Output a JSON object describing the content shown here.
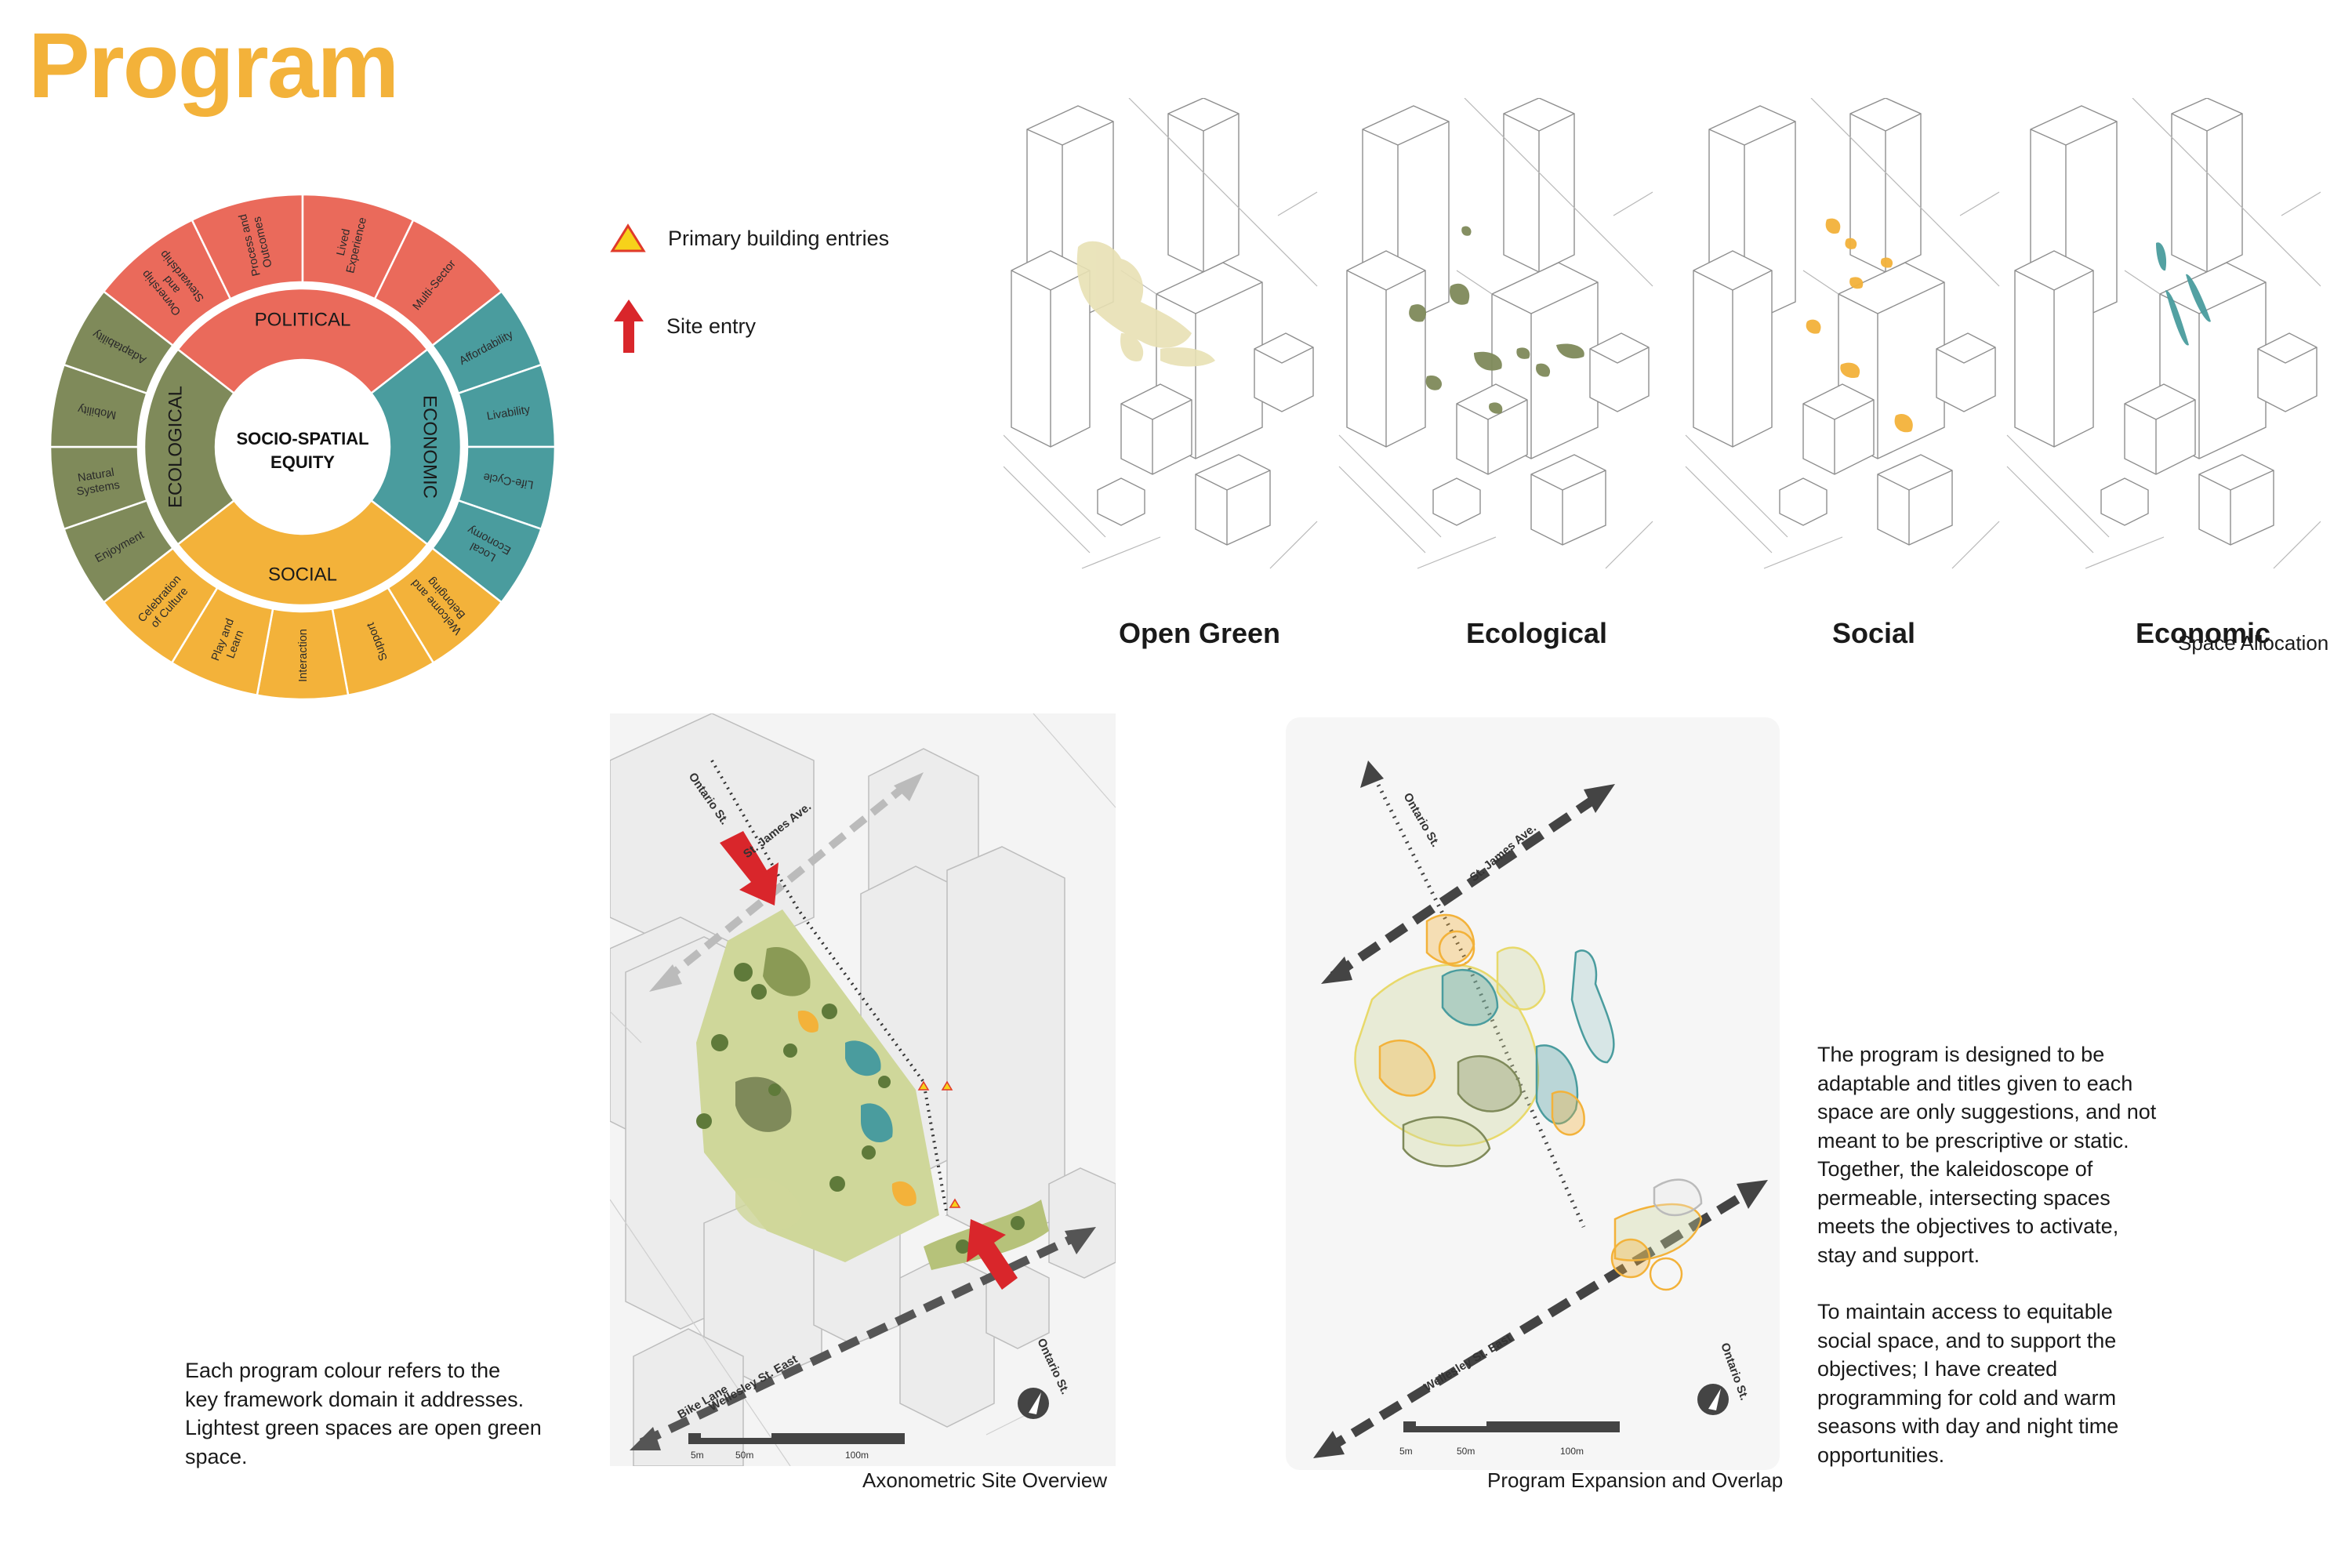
{
  "title": "Program",
  "wheel": {
    "center": [
      "SOCIO-SPATIAL",
      "EQUITY"
    ],
    "domains": {
      "political": "POLITICAL",
      "economic": "ECONOMIC",
      "social": "SOCIAL",
      "ecological": "ECOLOGICAL"
    },
    "segments": {
      "political": [
        "Ownership and Stewardship",
        "Process and Outcomes",
        "Lived Experience",
        "Multi-Sector"
      ],
      "economic": [
        "Affordability",
        "Livability",
        "Life-Cycle",
        "Local Economy"
      ],
      "social": [
        "Welcome and Belonging",
        "Support",
        "Interaction",
        "Play and Learn",
        "Celebration of Culture"
      ],
      "ecological": [
        "Enjoyment",
        "Natural Systems",
        "Mobility",
        "Adaptability"
      ]
    },
    "colors": {
      "political": "#ea6a5b",
      "economic": "#4a9c9e",
      "social": "#f3b23a",
      "ecological": "#7f8a5a"
    }
  },
  "legend": {
    "entries_label": "Primary building entries",
    "site_entry_label": "Site entry"
  },
  "panels": [
    {
      "label": "Open Green",
      "color": "#e8e1b4"
    },
    {
      "label": "Ecological",
      "color": "#7f8a5a"
    },
    {
      "label": "Social",
      "color": "#f3b23a"
    },
    {
      "label": "Economic",
      "color": "#4a9c9e"
    }
  ],
  "space_allocation_caption": "Space Allocation",
  "axo": {
    "caption": "Axonometric Site Overview",
    "streets": {
      "ontario": "Ontario St.",
      "st_james": "St. James Ave.",
      "wellesley": "Wellesley St. East",
      "bike_lane": "Bike Lane",
      "ontario_south": "Ontario St."
    },
    "scale": [
      "5m",
      "50m",
      "100m"
    ]
  },
  "overlap": {
    "caption": "Program Expansion and Overlap",
    "streets": {
      "ontario": "Ontario St.",
      "st_james": "St. James Ave.",
      "wellesley": "Wellesley St. East",
      "ontario_south": "Ontario St."
    },
    "scale": [
      "5m",
      "50m",
      "100m"
    ]
  },
  "left_paragraph": [
    "Each program colour refers to the",
    "key framework domain it addresses.",
    "Lightest green spaces are open green",
    "space."
  ],
  "right_paragraph_1": [
    "The program is designed to be",
    "adaptable and titles given to each",
    "space are only suggestions, and not",
    "meant to be prescriptive or static.",
    "Together, the kaleidoscope of",
    "permeable, intersecting spaces",
    "meets the objectives to activate,",
    "stay and support."
  ],
  "right_paragraph_2": [
    "To maintain access to equitable",
    "social space, and to support the",
    "objectives; I have created",
    "programming for cold and warm",
    "seasons with day and night time",
    "opportunities."
  ]
}
